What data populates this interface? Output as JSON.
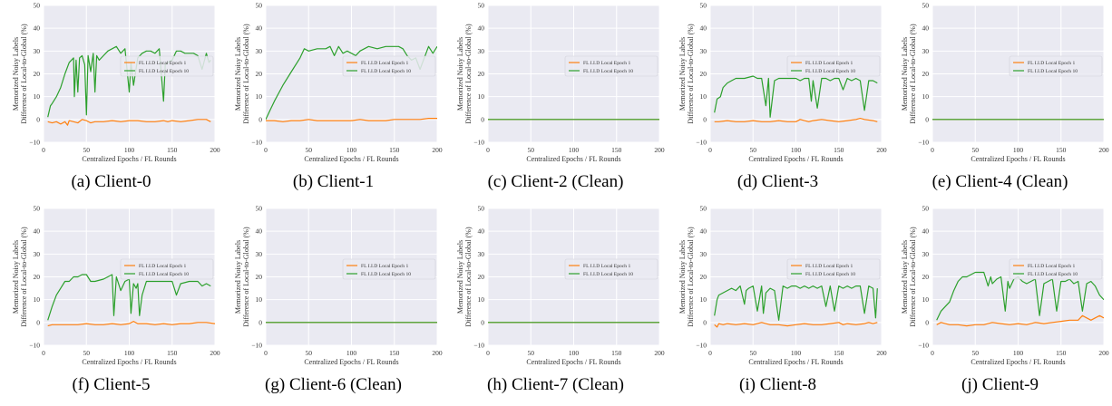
{
  "colors": {
    "plot_bg": "#eaeaf2",
    "grid": "#ffffff",
    "epoch1": "#ff7f0e",
    "epoch10": "#2ca02c"
  },
  "legend_entries": [
    "FL I.I.D Local Epoch 1",
    "FL I.I.D Local Epoch 10"
  ],
  "xlabel": "Centralized Epochs / FL Rounds",
  "ylabel_line1": "Memorized Noisy Labels",
  "ylabel_line2": "Difference of Local-to-Global (%)",
  "xticks": [
    "0",
    "50",
    "100",
    "150",
    "200"
  ],
  "yticks": [
    "−10",
    "0",
    "10",
    "20",
    "30",
    "40",
    "50"
  ],
  "chart_data": [
    {
      "type": "line",
      "caption": "(a) Client-0",
      "xlim": [
        0,
        200
      ],
      "ylim": [
        -10,
        50
      ],
      "grid": true,
      "legend": "middle-right",
      "series": [
        {
          "name": "FL I.I.D Local Epoch 1",
          "x": [
            5,
            10,
            15,
            20,
            25,
            28,
            30,
            35,
            40,
            45,
            50,
            55,
            60,
            70,
            80,
            90,
            100,
            110,
            120,
            130,
            140,
            145,
            150,
            160,
            170,
            180,
            190,
            195
          ],
          "y": [
            -1,
            -1.5,
            -1,
            -2,
            -1,
            -2.5,
            -0.5,
            -1,
            -1.5,
            0,
            -0.5,
            -1.5,
            -1,
            -1,
            -0.5,
            -1,
            -0.5,
            -0.5,
            -1,
            -1,
            -0.5,
            -1,
            -0.5,
            -1,
            -0.5,
            0,
            0,
            -1
          ]
        },
        {
          "name": "FL I.I.D Local Epoch 10",
          "x": [
            5,
            8,
            10,
            15,
            20,
            25,
            30,
            35,
            36,
            38,
            40,
            42,
            45,
            48,
            50,
            52,
            55,
            58,
            60,
            62,
            65,
            70,
            75,
            80,
            85,
            90,
            95,
            100,
            102,
            105,
            110,
            115,
            120,
            125,
            130,
            135,
            140,
            142,
            145,
            150,
            155,
            160,
            165,
            170,
            175,
            180,
            185,
            190,
            193,
            195
          ],
          "y": [
            1,
            6,
            7,
            10,
            14,
            20,
            25,
            27,
            10,
            26,
            12,
            27,
            28,
            24,
            2,
            28,
            21,
            29,
            12,
            28,
            26,
            28,
            30,
            31,
            32,
            29,
            31,
            12,
            25,
            15,
            27,
            29,
            30,
            30,
            29,
            31,
            8,
            24,
            25,
            26,
            30,
            30,
            29,
            29,
            29,
            28,
            22,
            29,
            25,
            26
          ]
        }
      ]
    },
    {
      "type": "line",
      "caption": "(b) Client-1",
      "xlim": [
        0,
        200
      ],
      "ylim": [
        -10,
        50
      ],
      "grid": true,
      "legend": "middle-right",
      "series": [
        {
          "name": "FL I.I.D Local Epoch 1",
          "x": [
            0,
            10,
            20,
            30,
            40,
            50,
            60,
            70,
            80,
            90,
            100,
            110,
            120,
            130,
            140,
            150,
            160,
            170,
            180,
            190,
            200
          ],
          "y": [
            -0.5,
            -0.5,
            -1,
            -0.5,
            -0.5,
            0,
            -0.5,
            -0.5,
            -0.5,
            -0.5,
            -0.5,
            0,
            -0.5,
            -0.5,
            -0.5,
            0,
            0,
            0,
            0,
            0.5,
            0.5
          ]
        },
        {
          "name": "FL I.I.D Local Epoch 10",
          "x": [
            0,
            5,
            10,
            20,
            30,
            40,
            45,
            50,
            60,
            70,
            75,
            80,
            85,
            90,
            95,
            100,
            105,
            110,
            120,
            130,
            140,
            150,
            155,
            160,
            165,
            170,
            175,
            180,
            185,
            190,
            195,
            200
          ],
          "y": [
            0,
            4,
            8,
            15,
            21,
            27,
            31,
            30,
            31,
            31,
            32,
            28,
            32,
            29,
            30,
            29,
            28,
            30,
            32,
            31,
            32,
            32,
            32,
            31,
            28,
            26,
            27,
            22,
            27,
            32,
            29,
            32
          ]
        }
      ]
    },
    {
      "type": "line",
      "caption": "(c) Client-2 (Clean)",
      "xlim": [
        0,
        200
      ],
      "ylim": [
        -10,
        50
      ],
      "grid": true,
      "legend": "middle-right",
      "series": [
        {
          "name": "FL I.I.D Local Epoch 1",
          "x": [
            0,
            200
          ],
          "y": [
            0,
            0
          ]
        },
        {
          "name": "FL I.I.D Local Epoch 10",
          "x": [
            0,
            200
          ],
          "y": [
            0,
            0
          ]
        }
      ]
    },
    {
      "type": "line",
      "caption": "(d) Client-3",
      "xlim": [
        0,
        200
      ],
      "ylim": [
        -10,
        50
      ],
      "grid": true,
      "legend": "middle-right",
      "series": [
        {
          "name": "FL I.I.D Local Epoch 1",
          "x": [
            5,
            10,
            20,
            30,
            40,
            50,
            60,
            70,
            80,
            90,
            100,
            105,
            110,
            115,
            120,
            130,
            140,
            150,
            160,
            170,
            175,
            180,
            190,
            195
          ],
          "y": [
            -1,
            -1,
            -0.5,
            -1,
            -1,
            -0.5,
            -1,
            -1,
            -0.5,
            -1,
            -1,
            0,
            -0.5,
            -1,
            -0.5,
            0,
            -0.5,
            -1,
            -0.5,
            0,
            0.5,
            0,
            -0.5,
            -1
          ]
        },
        {
          "name": "FL I.I.D Local Epoch 10",
          "x": [
            5,
            8,
            12,
            15,
            20,
            25,
            30,
            40,
            50,
            55,
            60,
            65,
            68,
            70,
            75,
            80,
            90,
            100,
            105,
            110,
            115,
            118,
            120,
            125,
            130,
            135,
            140,
            145,
            150,
            155,
            160,
            165,
            170,
            175,
            180,
            185,
            190,
            195
          ],
          "y": [
            3,
            9,
            10,
            14,
            16,
            17,
            18,
            18,
            19,
            18,
            18,
            6,
            18,
            1,
            17,
            18,
            18,
            18,
            17,
            18,
            18,
            8,
            17,
            5,
            18,
            18,
            17,
            18,
            18,
            13,
            18,
            17,
            18,
            17,
            4,
            17,
            17,
            16
          ]
        }
      ]
    },
    {
      "type": "line",
      "caption": "(e) Client-4 (Clean)",
      "xlim": [
        0,
        200
      ],
      "ylim": [
        -10,
        50
      ],
      "grid": true,
      "legend": "middle-right",
      "series": [
        {
          "name": "FL I.I.D Local Epoch 1",
          "x": [
            0,
            200
          ],
          "y": [
            0,
            0
          ]
        },
        {
          "name": "FL I.I.D Local Epoch 10",
          "x": [
            0,
            200
          ],
          "y": [
            0,
            0
          ]
        }
      ]
    },
    {
      "type": "line",
      "caption": "(f) Client-5",
      "xlim": [
        0,
        200
      ],
      "ylim": [
        -10,
        50
      ],
      "grid": true,
      "legend": "middle-right",
      "series": [
        {
          "name": "FL I.I.D Local Epoch 1",
          "x": [
            5,
            10,
            20,
            30,
            40,
            50,
            60,
            70,
            80,
            90,
            100,
            105,
            110,
            120,
            130,
            140,
            150,
            160,
            170,
            180,
            190,
            200
          ],
          "y": [
            -1.5,
            -1,
            -1,
            -1,
            -1,
            -0.5,
            -1,
            -1,
            -0.5,
            -1,
            -0.5,
            0.5,
            -0.5,
            -0.5,
            -1,
            -0.5,
            -1,
            -0.5,
            -0.5,
            0,
            0,
            -0.5
          ]
        },
        {
          "name": "FL I.I.D Local Epoch 10",
          "x": [
            5,
            10,
            15,
            20,
            25,
            30,
            35,
            40,
            45,
            50,
            55,
            60,
            70,
            75,
            80,
            82,
            85,
            90,
            95,
            100,
            102,
            105,
            108,
            110,
            112,
            115,
            120,
            125,
            130,
            140,
            150,
            155,
            160,
            170,
            180,
            185,
            190,
            195
          ],
          "y": [
            1,
            7,
            12,
            15,
            18,
            18,
            20,
            20,
            21,
            21,
            18,
            18,
            19,
            20,
            21,
            3,
            20,
            14,
            18,
            19,
            4,
            17,
            15,
            17,
            3,
            12,
            18,
            18,
            18,
            18,
            18,
            12,
            17,
            18,
            18,
            16,
            17,
            16
          ]
        }
      ]
    },
    {
      "type": "line",
      "caption": "(g) Client-6 (Clean)",
      "xlim": [
        0,
        200
      ],
      "ylim": [
        -10,
        50
      ],
      "grid": true,
      "legend": "middle-right",
      "series": [
        {
          "name": "FL I.I.D Local Epoch 1",
          "x": [
            0,
            200
          ],
          "y": [
            0,
            0
          ]
        },
        {
          "name": "FL I.I.D Local Epoch 10",
          "x": [
            0,
            200
          ],
          "y": [
            0,
            0
          ]
        }
      ]
    },
    {
      "type": "line",
      "caption": "(h) Client-7 (Clean)",
      "xlim": [
        0,
        200
      ],
      "ylim": [
        -10,
        50
      ],
      "grid": true,
      "legend": "middle-right",
      "series": [
        {
          "name": "FL I.I.D Local Epoch 1",
          "x": [
            0,
            200
          ],
          "y": [
            0,
            0
          ]
        },
        {
          "name": "FL I.I.D Local Epoch 10",
          "x": [
            0,
            200
          ],
          "y": [
            0,
            0
          ]
        }
      ]
    },
    {
      "type": "line",
      "caption": "(i) Client-8",
      "xlim": [
        0,
        200
      ],
      "ylim": [
        -10,
        50
      ],
      "grid": true,
      "legend": "middle-right",
      "series": [
        {
          "name": "FL I.I.D Local Epoch 1",
          "x": [
            5,
            8,
            10,
            15,
            20,
            30,
            40,
            50,
            60,
            70,
            80,
            90,
            100,
            110,
            120,
            130,
            140,
            150,
            155,
            160,
            170,
            180,
            185,
            190,
            195
          ],
          "y": [
            -1,
            -2,
            -0.5,
            -1,
            -0.5,
            -1,
            -0.5,
            -1,
            0,
            -1,
            -1,
            -1.5,
            -1,
            -0.5,
            -1,
            -1,
            -0.5,
            0,
            -1,
            -0.5,
            -1,
            -0.5,
            0,
            -0.5,
            0
          ]
        },
        {
          "name": "FL I.I.D Local Epoch 10",
          "x": [
            5,
            8,
            10,
            15,
            20,
            25,
            30,
            35,
            40,
            42,
            45,
            50,
            55,
            60,
            62,
            65,
            70,
            75,
            80,
            85,
            90,
            95,
            100,
            105,
            110,
            115,
            120,
            125,
            130,
            135,
            140,
            145,
            150,
            155,
            160,
            165,
            170,
            175,
            180,
            185,
            190,
            193,
            195
          ],
          "y": [
            3,
            10,
            12,
            13,
            14,
            15,
            14,
            16,
            8,
            14,
            15,
            16,
            5,
            16,
            4,
            13,
            15,
            14,
            1,
            16,
            15,
            16,
            16,
            15,
            16,
            15,
            16,
            15,
            16,
            7,
            16,
            5,
            16,
            15,
            16,
            15,
            16,
            16,
            4,
            16,
            15,
            2,
            15
          ]
        }
      ]
    },
    {
      "type": "line",
      "caption": "(j) Client-9",
      "xlim": [
        0,
        200
      ],
      "ylim": [
        -10,
        50
      ],
      "grid": true,
      "legend": "middle-right",
      "series": [
        {
          "name": "FL I.I.D Local Epoch 1",
          "x": [
            5,
            10,
            20,
            30,
            40,
            50,
            60,
            70,
            80,
            90,
            100,
            110,
            120,
            130,
            140,
            150,
            160,
            170,
            175,
            180,
            185,
            190,
            195,
            200
          ],
          "y": [
            -1,
            0,
            -1,
            -1,
            -1.5,
            -1,
            -1,
            0,
            -0.5,
            -1,
            -0.5,
            -1,
            0,
            -0.5,
            0,
            0.5,
            1,
            1,
            3,
            2,
            1,
            2,
            3,
            2
          ]
        },
        {
          "name": "FL I.I.D Local Epoch 10",
          "x": [
            5,
            10,
            15,
            20,
            25,
            30,
            35,
            40,
            45,
            50,
            55,
            60,
            65,
            68,
            70,
            75,
            80,
            85,
            88,
            90,
            95,
            100,
            105,
            110,
            115,
            120,
            125,
            130,
            135,
            140,
            145,
            150,
            155,
            160,
            165,
            170,
            175,
            180,
            185,
            190,
            195,
            200
          ],
          "y": [
            1,
            5,
            7,
            9,
            14,
            18,
            20,
            20,
            21,
            22,
            22,
            22,
            16,
            20,
            17,
            19,
            20,
            5,
            18,
            15,
            19,
            20,
            18,
            17,
            18,
            19,
            3,
            17,
            18,
            19,
            5,
            18,
            18,
            19,
            17,
            18,
            5,
            17,
            18,
            16,
            12,
            10
          ]
        }
      ]
    }
  ]
}
